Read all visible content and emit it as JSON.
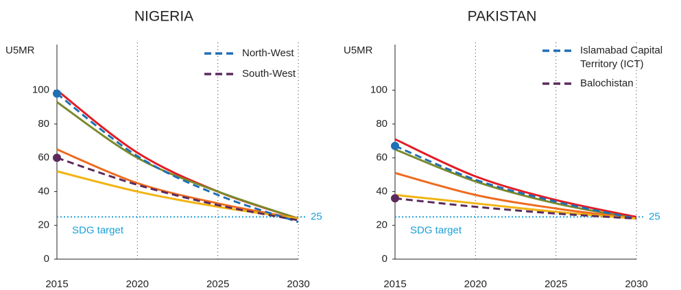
{
  "chart_data": [
    {
      "type": "line",
      "title": "NIGERIA",
      "y_label": "U5MR",
      "x": [
        2015,
        2020,
        2025,
        2030
      ],
      "xlim": [
        2015,
        2030
      ],
      "xticks": [
        2015,
        2020,
        2025,
        2030
      ],
      "ylim": [
        0,
        125
      ],
      "yticks": [
        0,
        20,
        40,
        60,
        80,
        100
      ],
      "grid_x": true,
      "legend": "upper right",
      "target": {
        "value": 25,
        "label": "SDG target",
        "color": "#1aa0d8"
      },
      "series": [
        {
          "color": "#e31b23",
          "values": [
            100,
            63,
            40,
            24
          ]
        },
        {
          "color": "#7a8a2a",
          "values": [
            93,
            60,
            40,
            24
          ]
        },
        {
          "color": "#ee6a1e",
          "values": [
            65,
            45,
            33,
            24
          ]
        },
        {
          "color": "#f2b312",
          "values": [
            52,
            40,
            31,
            24
          ]
        },
        {
          "name": "North-West",
          "color": "#1f6fb5",
          "dashed": true,
          "start_marker": true,
          "values": [
            98,
            61,
            38,
            22
          ]
        },
        {
          "name": "South-West",
          "color": "#5b2a5c",
          "dashed": true,
          "start_marker": true,
          "values": [
            60,
            44,
            32,
            23
          ]
        }
      ]
    },
    {
      "type": "line",
      "title": "PAKISTAN",
      "y_label": "U5MR",
      "x": [
        2015,
        2020,
        2025,
        2030
      ],
      "xlim": [
        2015,
        2030
      ],
      "xticks": [
        2015,
        2020,
        2025,
        2030
      ],
      "ylim": [
        0,
        125
      ],
      "yticks": [
        0,
        20,
        40,
        60,
        80,
        100
      ],
      "grid_x": true,
      "legend": "upper right",
      "target": {
        "value": 25,
        "label": "SDG target",
        "color": "#1aa0d8"
      },
      "series": [
        {
          "color": "#e31b23",
          "values": [
            71,
            49,
            35,
            25
          ]
        },
        {
          "color": "#7a8a2a",
          "values": [
            65,
            46,
            33,
            24
          ]
        },
        {
          "color": "#ee6a1e",
          "values": [
            51,
            38,
            30,
            24
          ]
        },
        {
          "color": "#f2b312",
          "values": [
            38,
            33,
            28,
            24
          ]
        },
        {
          "name": "Islamabad Capital Territory (ICT)",
          "color": "#1f6fb5",
          "dashed": true,
          "start_marker": true,
          "values": [
            67,
            47,
            34,
            24
          ]
        },
        {
          "name": "Balochistan",
          "color": "#5b2a5c",
          "dashed": true,
          "start_marker": true,
          "values": [
            36,
            31,
            27,
            24
          ]
        }
      ]
    }
  ]
}
